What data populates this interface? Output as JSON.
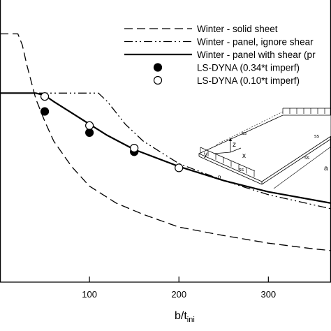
{
  "chart_data": {
    "type": "line",
    "xlabel": "b/t",
    "xlabel_subscript": "ini",
    "xlim": [
      0,
      370
    ],
    "ylim": [
      0,
      1.0
    ],
    "x_ticks": [
      100,
      200,
      300
    ],
    "x_tick_labels": [
      "100",
      "200",
      "300"
    ],
    "grid": false,
    "legend_placement": "top-right",
    "series": [
      {
        "name": "Winter - solid sheet",
        "style": "dashed",
        "x": [
          0,
          12,
          20,
          25,
          30,
          40,
          50,
          60,
          80,
          100,
          130,
          160,
          200,
          250,
          300,
          350,
          370
        ],
        "y": [
          0.88,
          0.88,
          0.88,
          0.84,
          0.77,
          0.65,
          0.57,
          0.5,
          0.41,
          0.34,
          0.28,
          0.24,
          0.195,
          0.165,
          0.138,
          0.118,
          0.112
        ]
      },
      {
        "name": "Winter - panel, ignore shear",
        "style": "dash-dot-dot",
        "x": [
          0,
          40,
          60,
          80,
          100,
          110,
          120,
          140,
          160,
          200,
          250,
          300,
          370
        ],
        "y": [
          0.67,
          0.67,
          0.67,
          0.67,
          0.67,
          0.67,
          0.64,
          0.56,
          0.5,
          0.42,
          0.36,
          0.31,
          0.26
        ]
      },
      {
        "name": "Winter - panel with shear (pr",
        "style": "solid",
        "x": [
          0,
          40,
          50,
          60,
          80,
          100,
          120,
          150,
          200,
          250,
          300,
          370
        ],
        "y": [
          0.67,
          0.67,
          0.662,
          0.64,
          0.6,
          0.56,
          0.52,
          0.47,
          0.41,
          0.36,
          0.32,
          0.28
        ]
      }
    ],
    "markers": [
      {
        "name": "LS-DYNA (0.34*t imperf)",
        "fill": "black",
        "x": [
          50,
          100,
          150
        ],
        "y": [
          0.605,
          0.53,
          0.462
        ]
      },
      {
        "name": "LS-DYNA (0.10*t imperf)",
        "fill": "white",
        "x": [
          50,
          100,
          150,
          200
        ],
        "y": [
          0.658,
          0.555,
          0.475,
          0.405
        ]
      }
    ],
    "inset": {
      "labels": [
        "ss",
        "ss",
        "ss",
        "ss",
        "y",
        "z",
        "x",
        "p",
        "a"
      ]
    }
  }
}
